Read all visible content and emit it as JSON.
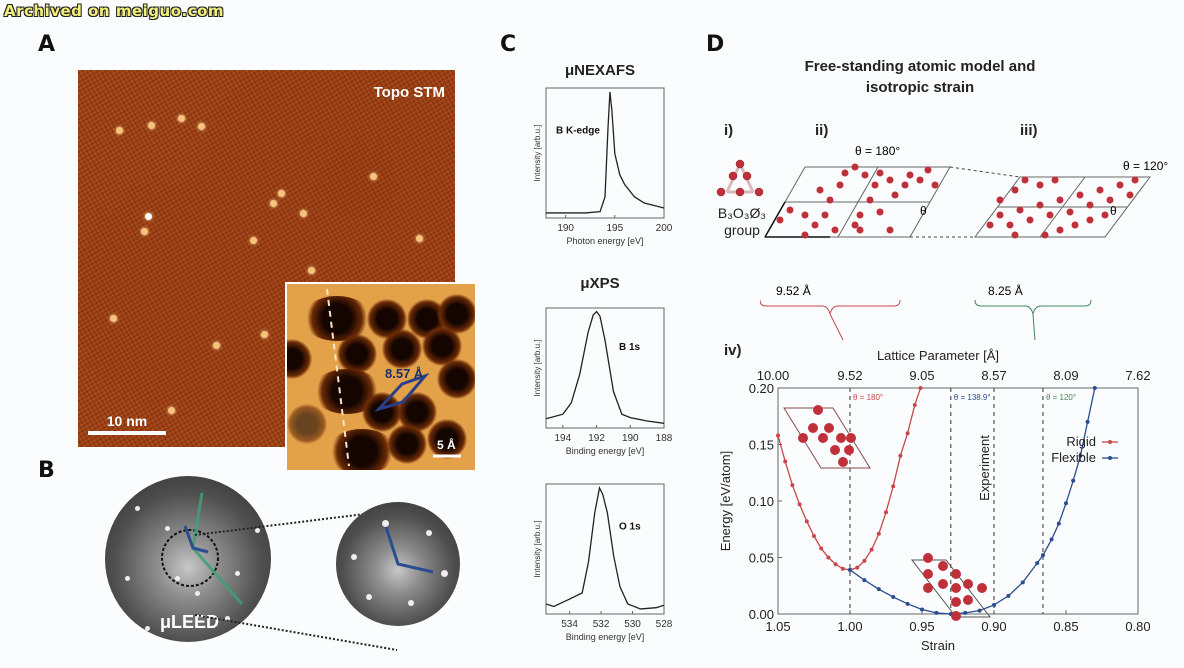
{
  "watermark": "Archived on meiguo.com",
  "panels": {
    "A": {
      "label": "A",
      "image_label": "Topo STM",
      "scale_bar": "10 nm",
      "inset": {
        "lattice_label": "8.57 Å",
        "scale_bar": "5 Å"
      }
    },
    "B": {
      "label": "B",
      "image_label": "μLEED"
    },
    "C": {
      "label": "C",
      "nexafs_title": "μNEXAFS",
      "xps_title": "μXPS"
    },
    "D": {
      "label": "D",
      "title_line1": "Free-standing atomic model and",
      "title_line2": "isotropic strain",
      "sub_i": "i)",
      "sub_ii": "ii)",
      "sub_iii": "iii)",
      "sub_iv": "iv)",
      "group_label_1": "B₃O₃Ø₃",
      "group_label_2": "group",
      "theta_ii": "θ = 180°",
      "theta_iii": "θ = 120°",
      "theta_symbol": "θ",
      "lattice_ii": "9.52 Å",
      "lattice_iii": "8.25 Å"
    }
  },
  "colors": {
    "rigid": "#c8474a",
    "flexible": "#2a4d8f",
    "green_link": "#3f8a5c",
    "atom": "#c0303a"
  },
  "chart_data": [
    {
      "id": "nexafs",
      "type": "line",
      "title": "μNEXAFS",
      "annotation": "B K-edge",
      "xlabel": "Photon energy [eV]",
      "ylabel": "Intensity [arb.u.]",
      "xlim": [
        188,
        200
      ],
      "xticks": [
        190,
        195,
        200
      ],
      "x": [
        188,
        190,
        192,
        193.5,
        194,
        194.3,
        194.5,
        194.7,
        195,
        195.5,
        196,
        197,
        198,
        199,
        200
      ],
      "y": [
        0.02,
        0.02,
        0.02,
        0.03,
        0.15,
        0.7,
        1.0,
        0.85,
        0.5,
        0.33,
        0.25,
        0.15,
        0.1,
        0.08,
        0.06
      ]
    },
    {
      "id": "xps_b1s",
      "type": "line",
      "title": "μXPS",
      "annotation": "B 1s",
      "xlabel": "Binding energy [eV]",
      "ylabel": "Intensity [arb.u.]",
      "xlim": [
        195,
        188
      ],
      "xticks": [
        194,
        192,
        190,
        188
      ],
      "x": [
        195,
        194,
        193.5,
        193,
        192.5,
        192.2,
        192,
        191.8,
        191.5,
        191,
        190.5,
        190,
        189,
        188
      ],
      "y": [
        0.06,
        0.1,
        0.2,
        0.45,
        0.82,
        0.97,
        1.0,
        0.96,
        0.75,
        0.3,
        0.1,
        0.07,
        0.04,
        0.02
      ]
    },
    {
      "id": "xps_o1s",
      "type": "line",
      "annotation": "O 1s",
      "xlabel": "Binding energy [eV]",
      "ylabel": "Intensity [arb.u.]",
      "xlim": [
        535.5,
        528
      ],
      "xticks": [
        534,
        532,
        530,
        528
      ],
      "x": [
        535.5,
        535,
        534,
        533.2,
        532.8,
        532.4,
        532.1,
        531.9,
        531.6,
        531.2,
        530.8,
        530.3,
        529.5,
        528.5,
        528
      ],
      "y": [
        0.06,
        0.04,
        0.1,
        0.15,
        0.4,
        0.8,
        1.0,
        0.95,
        0.8,
        0.45,
        0.2,
        0.06,
        0.02,
        0.03,
        0.05
      ]
    },
    {
      "id": "strain_energy",
      "type": "line",
      "xlabel": "Strain",
      "ylabel": "Energy [eV/atom]",
      "x2label": "Lattice Parameter [Å]",
      "xlim": [
        1.05,
        0.8
      ],
      "ylim": [
        0.0,
        0.2
      ],
      "xticks": [
        1.05,
        1.0,
        0.95,
        0.9,
        0.85,
        0.8
      ],
      "yticks": [
        0.0,
        0.05,
        0.1,
        0.15,
        0.2
      ],
      "x2ticks": [
        "10.00",
        "9.52",
        "9.05",
        "8.57",
        "8.09",
        "7.62"
      ],
      "legend": {
        "position": "top-right",
        "entries": [
          "Rigid",
          "Flexible"
        ]
      },
      "vlines": [
        {
          "x": 1.0,
          "label": "θ = 180°"
        },
        {
          "x": 0.93,
          "label": "θ = 138.9°"
        },
        {
          "x": 0.9,
          "label": "Experiment"
        },
        {
          "x": 0.866,
          "label": "θ = 120°"
        }
      ],
      "series": [
        {
          "name": "Rigid",
          "x": [
            1.05,
            1.045,
            1.04,
            1.035,
            1.03,
            1.025,
            1.02,
            1.015,
            1.01,
            1.005,
            1.0,
            0.995,
            0.99,
            0.985,
            0.98,
            0.975,
            0.97,
            0.965,
            0.96,
            0.955,
            0.951
          ],
          "y": [
            0.158,
            0.135,
            0.114,
            0.097,
            0.082,
            0.069,
            0.058,
            0.05,
            0.044,
            0.04,
            0.039,
            0.041,
            0.047,
            0.057,
            0.071,
            0.09,
            0.113,
            0.14,
            0.16,
            0.185,
            0.2
          ]
        },
        {
          "name": "Flexible",
          "x": [
            1.0,
            0.99,
            0.98,
            0.97,
            0.96,
            0.95,
            0.94,
            0.93,
            0.92,
            0.91,
            0.9,
            0.89,
            0.88,
            0.87,
            0.866,
            0.86,
            0.855,
            0.85,
            0.845,
            0.84,
            0.835,
            0.83
          ],
          "y": [
            0.039,
            0.03,
            0.022,
            0.015,
            0.009,
            0.004,
            0.001,
            0.0,
            0.001,
            0.003,
            0.008,
            0.016,
            0.028,
            0.045,
            0.052,
            0.066,
            0.08,
            0.098,
            0.118,
            0.14,
            0.17,
            0.2
          ]
        }
      ]
    }
  ]
}
